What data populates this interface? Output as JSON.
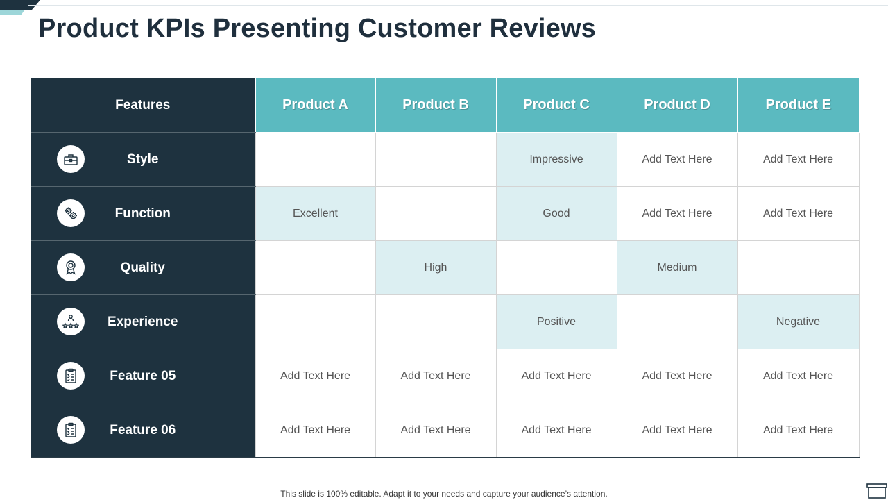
{
  "title": "Product KPIs Presenting Customer Reviews",
  "colors": {
    "dark": "#1e323f",
    "teal": "#5bbac0",
    "highlight": "#dceff2"
  },
  "table": {
    "corner_header": "Features",
    "products": [
      "Product A",
      "Product B",
      "Product C",
      "Product D",
      "Product E"
    ],
    "rows": [
      {
        "feature": "Style",
        "icon": "toolbox-icon",
        "values": [
          "",
          "",
          "Impressive",
          "Add Text Here",
          "Add Text Here"
        ],
        "highlight": [
          false,
          false,
          true,
          false,
          false
        ]
      },
      {
        "feature": "Function",
        "icon": "gears-icon",
        "values": [
          "Excellent",
          "",
          "Good",
          "Add Text Here",
          "Add Text Here"
        ],
        "highlight": [
          true,
          false,
          true,
          false,
          false
        ]
      },
      {
        "feature": "Quality",
        "icon": "award-ribbon-icon",
        "values": [
          "",
          "High",
          "",
          "Medium",
          ""
        ],
        "highlight": [
          false,
          true,
          false,
          true,
          false
        ]
      },
      {
        "feature": "Experience",
        "icon": "star-people-icon",
        "values": [
          "",
          "",
          "Positive",
          "",
          "Negative"
        ],
        "highlight": [
          false,
          false,
          true,
          false,
          true
        ]
      },
      {
        "feature": "Feature 05",
        "icon": "checklist-icon",
        "values": [
          "Add Text Here",
          "Add Text Here",
          "Add Text Here",
          "Add Text Here",
          "Add Text Here"
        ],
        "highlight": [
          false,
          false,
          false,
          false,
          false
        ]
      },
      {
        "feature": "Feature 06",
        "icon": "checklist-icon",
        "values": [
          "Add Text Here",
          "Add Text Here",
          "Add Text Here",
          "Add Text Here",
          "Add Text Here"
        ],
        "highlight": [
          false,
          false,
          false,
          false,
          false
        ]
      }
    ]
  },
  "footer": "This slide is 100% editable. Adapt it to your needs and capture your audience’s attention."
}
